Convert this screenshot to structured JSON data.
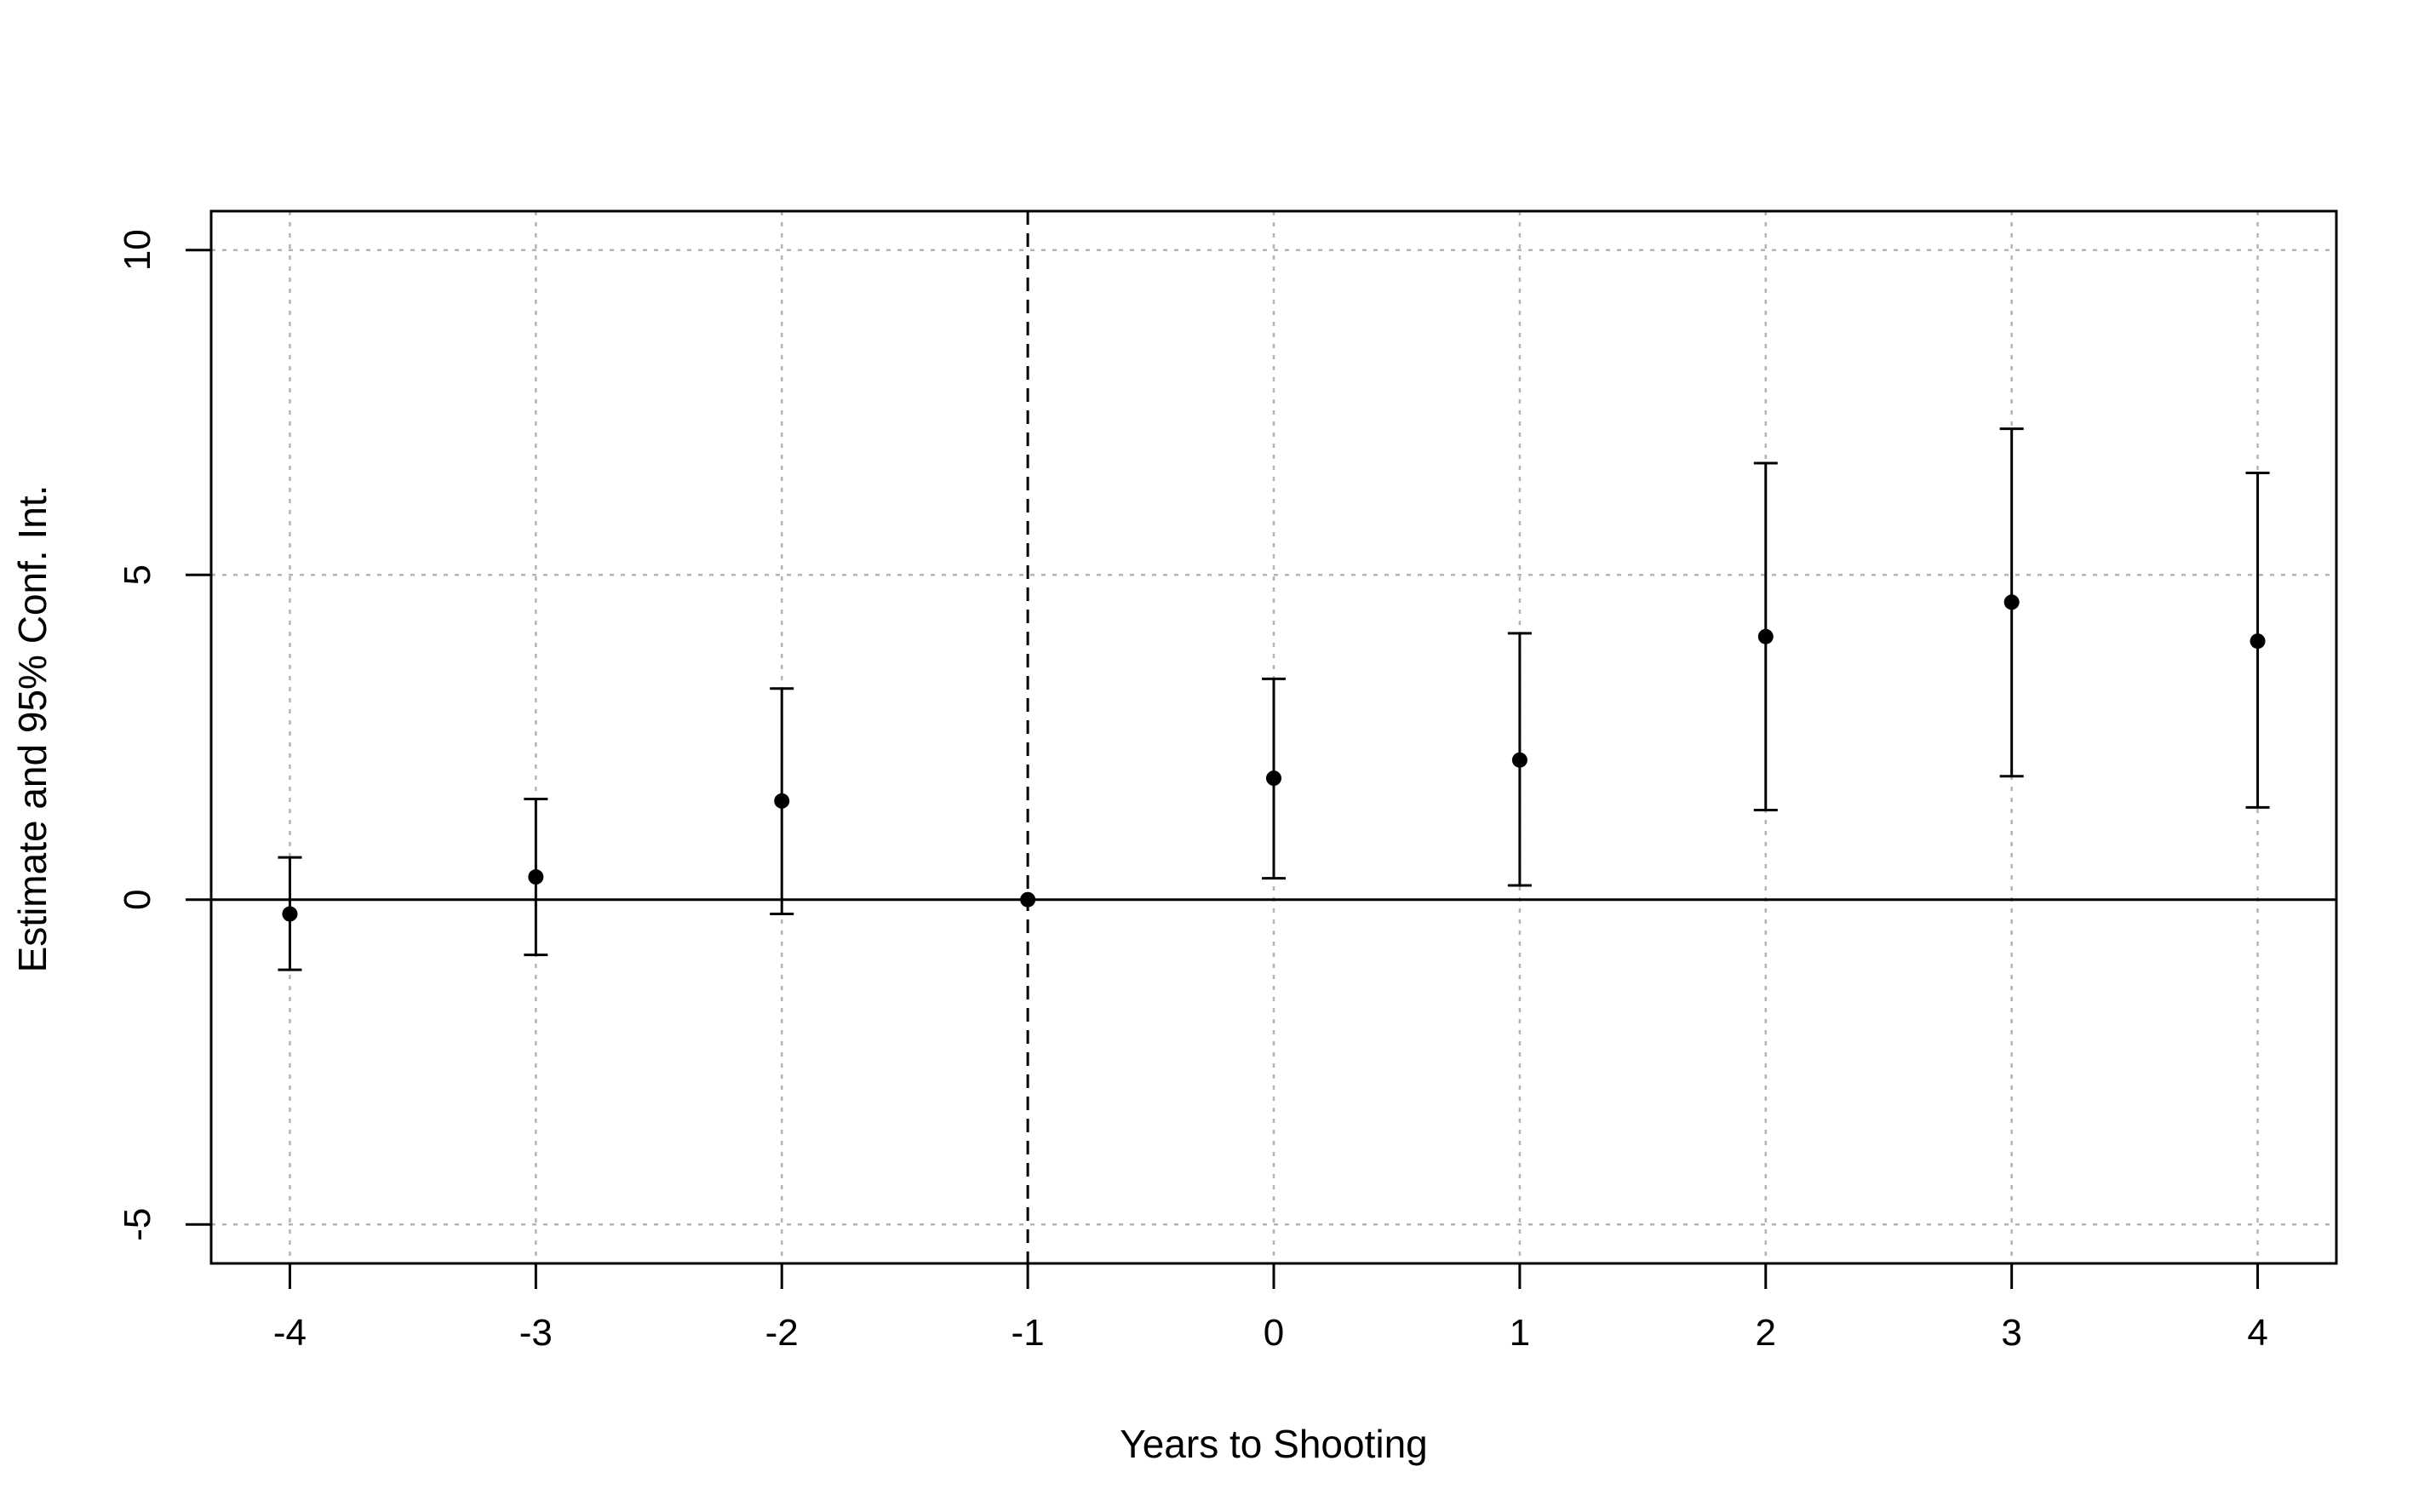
{
  "chart_data": {
    "type": "scatter",
    "title": "",
    "xlabel": "Years to Shooting",
    "ylabel": "Estimate and 95% Conf. Int.",
    "xlim": [
      -4.32,
      4.32
    ],
    "ylim": [
      -5.6,
      10.6
    ],
    "x_ticks": [
      -4,
      -3,
      -2,
      -1,
      0,
      1,
      2,
      3,
      4
    ],
    "x_tick_labels": [
      "-4",
      "-3",
      "-2",
      "-1",
      "0",
      "1",
      "2",
      "3",
      "4"
    ],
    "y_ticks": [
      -5,
      0,
      5,
      10
    ],
    "y_tick_labels": [
      "-5",
      "0",
      "5",
      "10"
    ],
    "grid": true,
    "reference_lines": {
      "horizontal_solid_at_y": 0,
      "vertical_dashed_at_x": -1
    },
    "series": [
      {
        "x": [
          -4,
          -3,
          -2,
          -1,
          0,
          1,
          2,
          3,
          4
        ],
        "estimate": [
          -0.22,
          0.35,
          1.52,
          0.0,
          1.87,
          2.15,
          4.05,
          4.58,
          3.98
        ],
        "ci_lower": [
          -1.08,
          -0.85,
          -0.22,
          0.0,
          0.33,
          0.22,
          1.38,
          1.9,
          1.42
        ],
        "ci_upper": [
          0.65,
          1.55,
          3.25,
          0.0,
          3.4,
          4.1,
          6.72,
          7.25,
          6.57
        ]
      }
    ],
    "colors": {
      "points": "#000000",
      "grid": "#b3b3b3",
      "axes": "#000000"
    }
  }
}
